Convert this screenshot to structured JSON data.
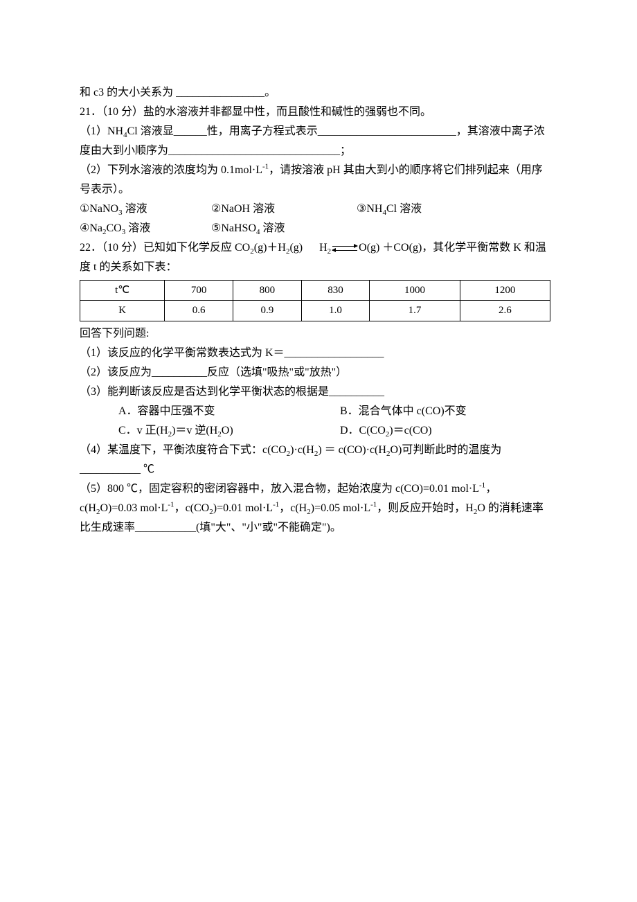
{
  "line_c3": "和 c3 的大小关系为 ________________。",
  "q21": {
    "stem": "21．（10 分）盐的水溶液并非都显中性，而且酸性和碱性的强弱也不同。",
    "p1_a": "（1）NH",
    "p1_b": "Cl 溶液显______性，用离子方程式表示_________________________，其溶液中离子浓度由大到小顺序为_______________________________；",
    "p2_a": "（2）下列水溶液的浓度均为 0.1mol·L",
    "p2_b": "，请按溶液 pH 其由大到小的顺序将它们排列起来（用序号表示）。",
    "sol1_1": "①NaNO",
    "sol1_1b": " 溶液",
    "sol1_2": "②NaOH 溶液",
    "sol1_3a": "③NH",
    "sol1_3b": "Cl 溶液",
    "sol2_1a": "④Na",
    "sol2_1b": "CO",
    "sol2_1c": " 溶液",
    "sol2_2a": "⑤NaHSO",
    "sol2_2b": " 溶液"
  },
  "q22": {
    "stem_a": "22．（10 分）已知如下化学反应 CO",
    "stem_b": "(g)＋H",
    "stem_c": "(g)",
    "stem_d": "H",
    "stem_e": "O(g) ＋CO(g)，其化学平衡常数 K 和温度 t 的关系如下表：",
    "table": {
      "type": "table",
      "columns": [
        "t℃",
        "700",
        "800",
        "830",
        "1000",
        "1200"
      ],
      "rows": [
        [
          "K",
          "0.6",
          "0.9",
          "1.0",
          "1.7",
          "2.6"
        ]
      ],
      "border_color": "#000000",
      "text_align": "center",
      "fontsize": 15
    },
    "after_table": "回答下列问题:",
    "p1": "（1）该反应的化学平衡常数表达式为 K＝__________________",
    "p2": "（2）该反应为__________反应（选填\"吸热\"或\"放热\"）",
    "p3": "（3）能判断该反应是否达到化学平衡状态的根据是__________",
    "optA": "A．容器中压强不变",
    "optB": "B．混合气体中 c(CO)不变",
    "optC_a": "C．v 正(H",
    "optC_b": ")＝v 逆(H",
    "optC_c": "O)",
    "optD_a": "D．C(CO",
    "optD_b": ")＝c(CO)",
    "p4_a": "（4）某温度下，平衡浓度符合下式：c(CO",
    "p4_b": ")·c(H",
    "p4_c": ") ＝ c(CO)·c(H",
    "p4_d": "O)可判断此时的温度为___________ ℃",
    "p5_a": "（5）800 ℃，固定容积的密闭容器中，放入混合物，起始浓度为 c(CO)=0.01 mol·L",
    "p5_b": "，c(H",
    "p5_c": "O)=0.03 mol·L",
    "p5_d": "，c(CO",
    "p5_e": ")=0.01 mol·L",
    "p5_f": "，c(H",
    "p5_g": ")=0.05 mol·L",
    "p5_h": "，则反应开始时，H",
    "p5_i": "O 的消耗速率比生成速率___________(填\"大\"、\"小\"或\"不能确定\")。"
  }
}
